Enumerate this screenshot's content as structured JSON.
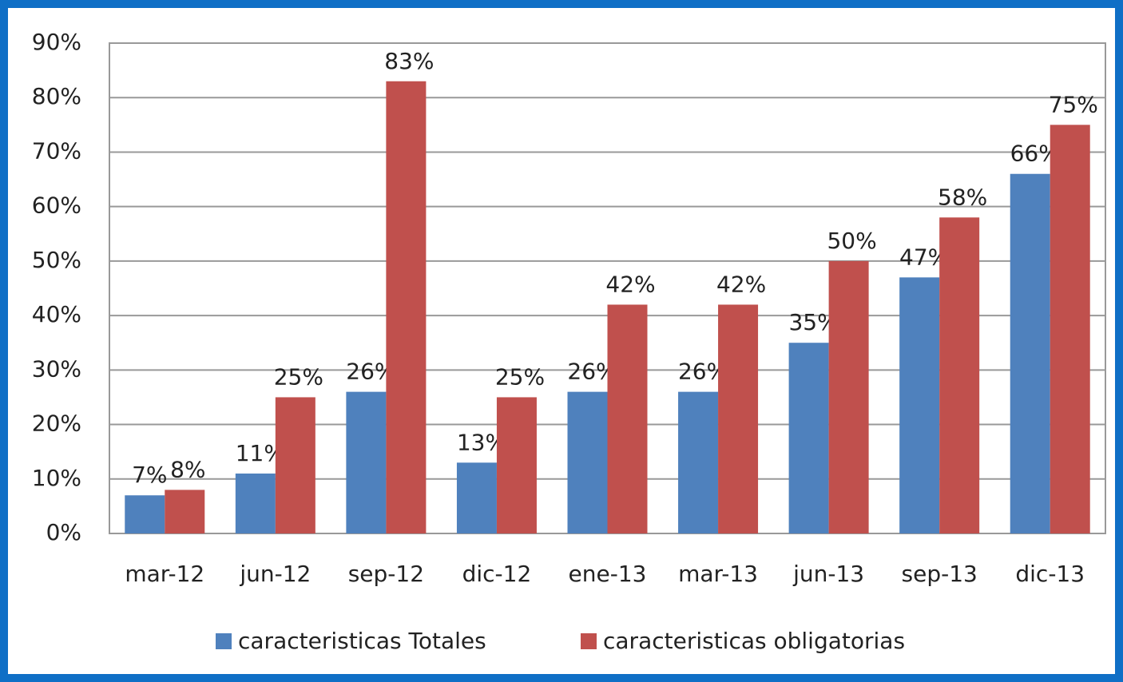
{
  "chart_data": {
    "type": "bar",
    "categories": [
      "mar-12",
      "jun-12",
      "sep-12",
      "dic-12",
      "ene-13",
      "mar-13",
      "jun-13",
      "sep-13",
      "dic-13"
    ],
    "series": [
      {
        "name": "caracteristicas Totales",
        "color": "#4f81bd",
        "values": [
          7,
          11,
          26,
          13,
          26,
          26,
          35,
          47,
          66
        ],
        "value_labels": [
          "7%",
          "11%",
          "26%",
          "13%",
          "26%",
          "26%",
          "35%",
          "47%",
          "66%"
        ]
      },
      {
        "name": "caracteristicas obligatorias",
        "color": "#c0504d",
        "values": [
          8,
          25,
          83,
          25,
          42,
          42,
          50,
          58,
          75
        ],
        "value_labels": [
          "8%",
          "25%",
          "83%",
          "25%",
          "42%",
          "42%",
          "50%",
          "58%",
          "75%"
        ]
      }
    ],
    "ylim": [
      0,
      90
    ],
    "yticks": [
      {
        "value": 0,
        "label": "0%"
      },
      {
        "value": 10,
        "label": "10%"
      },
      {
        "value": 20,
        "label": "20%"
      },
      {
        "value": 30,
        "label": "30%"
      },
      {
        "value": 40,
        "label": "40%"
      },
      {
        "value": 50,
        "label": "50%"
      },
      {
        "value": 60,
        "label": "60%"
      },
      {
        "value": 70,
        "label": "70%"
      },
      {
        "value": 80,
        "label": "80%"
      },
      {
        "value": 90,
        "label": "90%"
      }
    ],
    "grid": true,
    "legend": "bottom"
  }
}
